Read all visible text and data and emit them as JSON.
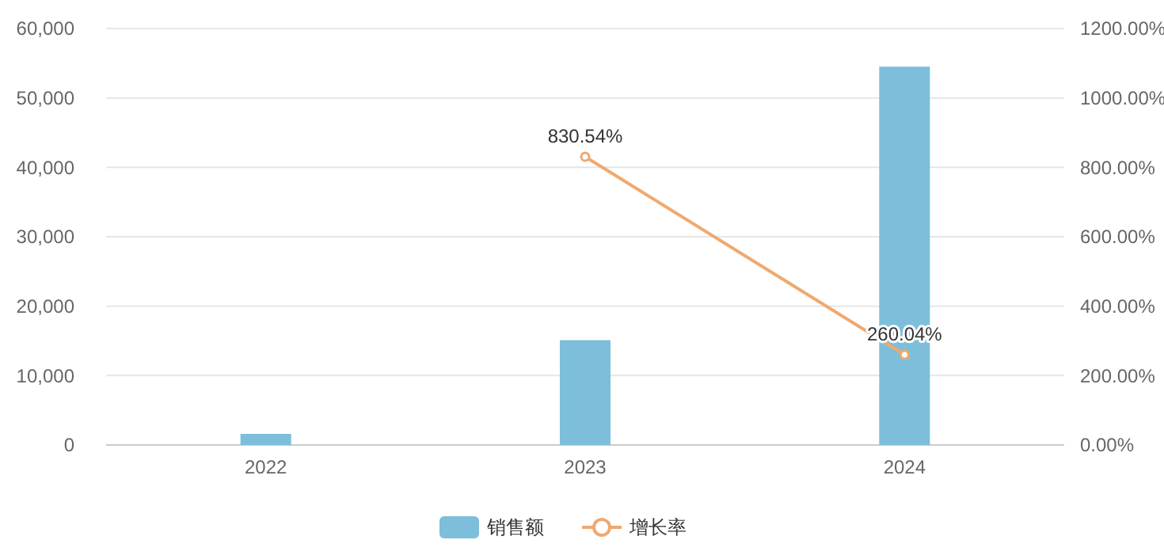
{
  "chart_data": {
    "type": "bar",
    "categories": [
      "2022",
      "2023",
      "2024"
    ],
    "series": [
      {
        "name": "销售额",
        "color": "#7dbedb",
        "values": [
          1600,
          15100,
          54500
        ]
      },
      {
        "name": "增长率",
        "type": "line",
        "axis": "y2",
        "color": "#efa96f",
        "values": [
          null,
          830.54,
          260.04
        ],
        "value_labels": [
          null,
          "830.54%",
          "260.04%"
        ],
        "marker": "circle"
      }
    ],
    "ylim": [
      0,
      60000
    ],
    "yticks": [
      {
        "value": 0,
        "label": "0"
      },
      {
        "value": 10000,
        "label": "10,000"
      },
      {
        "value": 20000,
        "label": "20,000"
      },
      {
        "value": 30000,
        "label": "30,000"
      },
      {
        "value": 40000,
        "label": "40,000"
      },
      {
        "value": 50000,
        "label": "50,000"
      },
      {
        "value": 60000,
        "label": "60,000"
      }
    ],
    "y2lim": [
      0,
      1200
    ],
    "y2ticks": [
      {
        "value": 0,
        "label": "0.00%"
      },
      {
        "value": 200,
        "label": "200.00%"
      },
      {
        "value": 400,
        "label": "400.00%"
      },
      {
        "value": 600,
        "label": "600.00%"
      },
      {
        "value": 800,
        "label": "800.00%"
      },
      {
        "value": 1000,
        "label": "1000.00%"
      },
      {
        "value": 1200,
        "label": "1200.00%"
      }
    ],
    "grid": "y",
    "legend": "bottom"
  }
}
